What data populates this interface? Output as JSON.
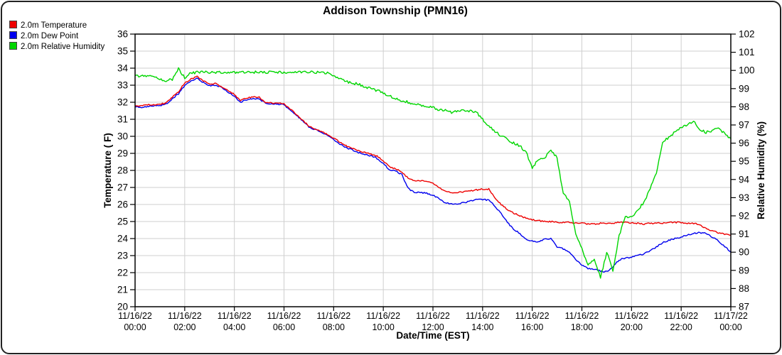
{
  "title": "Addison Township (PMN16)",
  "chart_data": {
    "type": "line",
    "title": "Addison Township (PMN16)",
    "xlabel": "Date/Time (EST)",
    "ylabel_left": "Temperature ( F)",
    "ylabel_right": "Relative Humidity (%)",
    "ylim_left": [
      20,
      36
    ],
    "ylim_right": [
      87,
      102
    ],
    "grid": true,
    "legend_position": "top-left",
    "left_ticks": [
      36,
      35,
      34,
      33,
      32,
      31,
      30,
      29,
      28,
      27,
      26,
      25,
      24,
      23,
      22,
      21,
      20
    ],
    "right_ticks": [
      102,
      101,
      100,
      99,
      98,
      97,
      96,
      95,
      94,
      93,
      92,
      91,
      90,
      89,
      88,
      87
    ],
    "x_ticks": [
      {
        "date": "11/16/22",
        "time": "00:00"
      },
      {
        "date": "11/16/22",
        "time": "02:00"
      },
      {
        "date": "11/16/22",
        "time": "04:00"
      },
      {
        "date": "11/16/22",
        "time": "06:00"
      },
      {
        "date": "11/16/22",
        "time": "08:00"
      },
      {
        "date": "11/16/22",
        "time": "10:00"
      },
      {
        "date": "11/16/22",
        "time": "12:00"
      },
      {
        "date": "11/16/22",
        "time": "14:00"
      },
      {
        "date": "11/16/22",
        "time": "16:00"
      },
      {
        "date": "11/16/22",
        "time": "18:00"
      },
      {
        "date": "11/16/22",
        "time": "20:00"
      },
      {
        "date": "11/16/22",
        "time": "22:00"
      },
      {
        "date": "11/17/22",
        "time": "00:00"
      }
    ],
    "x_start_hour": 0,
    "x_end_hour": 24,
    "x_step_hours": 0.25,
    "series": [
      {
        "name": "2.0m Temperature",
        "axis": "left",
        "color": "#ee0000",
        "values": [
          31.8,
          31.8,
          31.85,
          31.85,
          31.9,
          31.95,
          32.3,
          32.6,
          33.15,
          33.35,
          33.5,
          33.25,
          33.05,
          33.1,
          32.9,
          32.7,
          32.45,
          32.1,
          32.25,
          32.3,
          32.3,
          32.0,
          31.95,
          31.95,
          31.9,
          31.6,
          31.3,
          30.95,
          30.6,
          30.45,
          30.3,
          30.1,
          29.9,
          29.65,
          29.45,
          29.3,
          29.15,
          29.05,
          28.95,
          28.85,
          28.55,
          28.2,
          28.1,
          27.9,
          27.55,
          27.4,
          27.4,
          27.35,
          27.25,
          27.0,
          26.8,
          26.7,
          26.7,
          26.75,
          26.8,
          26.85,
          26.9,
          26.9,
          26.4,
          26.0,
          25.7,
          25.5,
          25.35,
          25.2,
          25.1,
          25.05,
          25.0,
          25.0,
          24.95,
          24.95,
          24.95,
          24.9,
          24.9,
          24.85,
          24.85,
          24.9,
          24.9,
          24.9,
          24.95,
          24.95,
          24.9,
          24.9,
          24.85,
          24.9,
          24.9,
          24.9,
          24.95,
          24.95,
          24.95,
          24.9,
          24.9,
          24.8,
          24.6,
          24.45,
          24.35,
          24.25,
          24.2
        ]
      },
      {
        "name": "2.0m Dew Point",
        "axis": "left",
        "color": "#0000ee",
        "values": [
          31.75,
          31.7,
          31.75,
          31.8,
          31.8,
          31.9,
          32.2,
          32.5,
          33.0,
          33.25,
          33.4,
          33.15,
          32.95,
          33.0,
          32.85,
          32.6,
          32.35,
          32.0,
          32.15,
          32.2,
          32.2,
          31.95,
          31.9,
          31.9,
          31.85,
          31.55,
          31.25,
          30.9,
          30.55,
          30.4,
          30.25,
          30.05,
          29.8,
          29.55,
          29.35,
          29.2,
          29.05,
          28.95,
          28.85,
          28.7,
          28.4,
          28.05,
          27.95,
          27.75,
          26.95,
          26.7,
          26.7,
          26.65,
          26.55,
          26.35,
          26.1,
          26.05,
          26.05,
          26.1,
          26.2,
          26.3,
          26.3,
          26.25,
          25.9,
          25.45,
          24.95,
          24.55,
          24.3,
          23.95,
          23.85,
          23.8,
          23.95,
          24.0,
          23.5,
          23.4,
          23.2,
          22.75,
          22.45,
          22.25,
          22.2,
          22.1,
          22.05,
          22.35,
          22.75,
          22.85,
          22.9,
          23.0,
          23.1,
          23.3,
          23.5,
          23.75,
          23.9,
          24.0,
          24.1,
          24.2,
          24.3,
          24.35,
          24.3,
          24.1,
          23.85,
          23.55,
          23.2
        ]
      },
      {
        "name": "2.0m Relative Humidity",
        "axis": "right",
        "color": "#00d600",
        "values": [
          99.7,
          99.7,
          99.7,
          99.65,
          99.5,
          99.45,
          99.5,
          100.1,
          99.6,
          99.85,
          99.9,
          99.9,
          99.9,
          99.9,
          99.9,
          99.9,
          99.9,
          99.9,
          99.9,
          99.9,
          99.9,
          99.9,
          99.9,
          99.9,
          99.9,
          99.9,
          99.9,
          99.9,
          99.9,
          99.9,
          99.9,
          99.85,
          99.7,
          99.55,
          99.4,
          99.3,
          99.25,
          99.1,
          99.0,
          98.9,
          98.75,
          98.6,
          98.45,
          98.35,
          98.25,
          98.15,
          98.1,
          98.0,
          97.95,
          97.85,
          97.8,
          97.7,
          97.75,
          97.8,
          97.75,
          97.7,
          97.3,
          96.95,
          96.65,
          96.4,
          96.2,
          96.0,
          95.85,
          95.5,
          94.65,
          95.1,
          95.2,
          95.6,
          95.2,
          93.2,
          92.8,
          91.0,
          90.2,
          89.3,
          89.6,
          88.6,
          90.0,
          89.0,
          90.9,
          92.0,
          91.9,
          92.3,
          92.75,
          93.5,
          94.3,
          96.1,
          96.3,
          96.6,
          96.85,
          97.0,
          97.2,
          96.75,
          96.6,
          96.7,
          96.8,
          96.55,
          96.25
        ]
      }
    ]
  },
  "colors": {
    "grid": "#cfcfcf",
    "frame": "#000000",
    "temperature": "#ee0000",
    "dew_point": "#0000ee",
    "relative_humidity": "#00d600"
  }
}
